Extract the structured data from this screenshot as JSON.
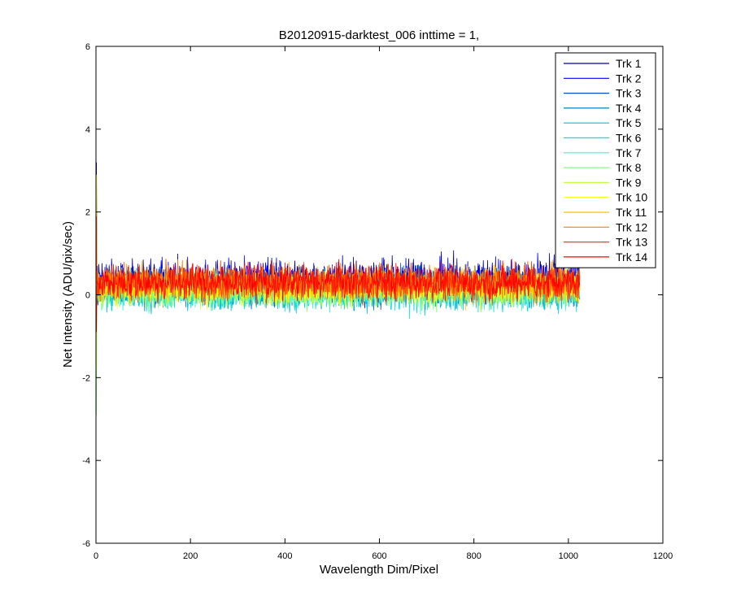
{
  "chart_data": {
    "type": "line",
    "title": "B20120915-darktest_006 inttime = 1,",
    "xlabel": "Wavelength Dim/Pixel",
    "ylabel": "Net Intensity (ADU/pix/sec)",
    "xlim": [
      0,
      1200
    ],
    "ylim": [
      -6,
      6
    ],
    "xticks": [
      0,
      200,
      400,
      600,
      800,
      1000,
      1200
    ],
    "xtick_labels": [
      "0",
      "200",
      "400",
      "600",
      "800",
      "1000",
      "1200"
    ],
    "yticks": [
      -6,
      -4,
      -2,
      0,
      2,
      4,
      6
    ],
    "ytick_labels": [
      "-6",
      "-4",
      "-2",
      "0",
      "2",
      "4",
      "6"
    ],
    "grid": false,
    "legend_position": "top-right",
    "x_range": [
      1,
      1024
    ],
    "series": [
      {
        "name": "Trk 1",
        "color": "#0000AA",
        "mean": 0.35,
        "spread": 0.35,
        "start_value": 3.2
      },
      {
        "name": "Trk 2",
        "color": "#0000FF",
        "mean": 0.35,
        "spread": 0.35,
        "start_value": 2.5
      },
      {
        "name": "Trk 3",
        "color": "#0050C8",
        "mean": 0.2,
        "spread": 0.3,
        "start_value": 1.8
      },
      {
        "name": "Trk 4",
        "color": "#0080C0",
        "mean": 0.15,
        "spread": 0.3,
        "start_value": 1.2
      },
      {
        "name": "Trk 5",
        "color": "#00C0D0",
        "mean": 0.1,
        "spread": 0.32,
        "start_value": 0.6
      },
      {
        "name": "Trk 6",
        "color": "#00E0E0",
        "mean": 0.05,
        "spread": 0.3,
        "start_value": -0.4
      },
      {
        "name": "Trk 7",
        "color": "#40F0D0",
        "mean": 0.1,
        "spread": 0.3,
        "start_value": -1.2
      },
      {
        "name": "Trk 8",
        "color": "#80FF80",
        "mean": 0.1,
        "spread": 0.28,
        "start_value": -2.9
      },
      {
        "name": "Trk 9",
        "color": "#C0FF40",
        "mean": 0.15,
        "spread": 0.28,
        "start_value": -1.8
      },
      {
        "name": "Trk 10",
        "color": "#FFFF00",
        "mean": 0.15,
        "spread": 0.28,
        "start_value": 2.9
      },
      {
        "name": "Trk 11",
        "color": "#FFC000",
        "mean": 0.25,
        "spread": 0.3,
        "start_value": 1.5
      },
      {
        "name": "Trk 12",
        "color": "#FF8000",
        "mean": 0.3,
        "spread": 0.3,
        "start_value": 0.9
      },
      {
        "name": "Trk 13",
        "color": "#FF4000",
        "mean": 0.3,
        "spread": 0.3,
        "start_value": 1.9
      },
      {
        "name": "Trk 14",
        "color": "#FF0000",
        "mean": 0.3,
        "spread": 0.3,
        "start_value": -0.9
      }
    ]
  }
}
